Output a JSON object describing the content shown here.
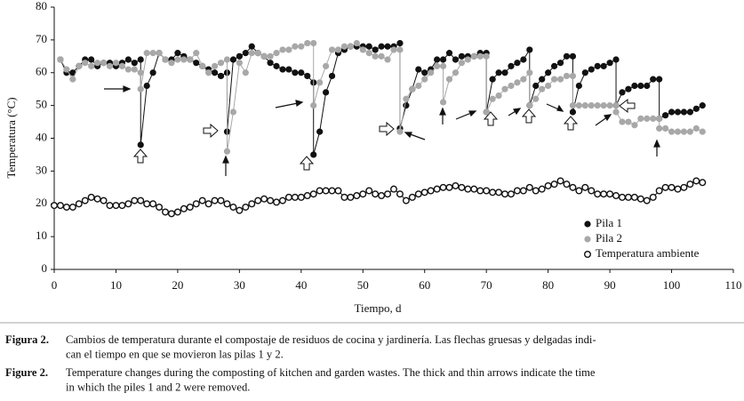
{
  "chart_data": {
    "type": "line",
    "xlabel": "Tiempo, d",
    "ylabel": "Temperatura (°C)",
    "xlim": [
      0,
      110
    ],
    "xticks": [
      0,
      10,
      20,
      30,
      40,
      50,
      60,
      70,
      80,
      90,
      100,
      110
    ],
    "ylim": [
      0,
      80
    ],
    "yticks": [
      0,
      10,
      20,
      30,
      40,
      50,
      60,
      70,
      80
    ],
    "legend": "lower right",
    "series": [
      {
        "name": "Pila 1",
        "color": "#111111",
        "marker": "filled",
        "x": [
          1,
          2,
          3,
          4,
          5,
          6,
          7,
          8,
          9,
          10,
          11,
          12,
          13,
          14,
          14,
          15,
          16,
          17,
          18,
          19,
          20,
          21,
          22,
          23,
          24,
          25,
          26,
          27,
          28,
          28,
          29,
          30,
          31,
          32,
          33,
          34,
          35,
          36,
          37,
          38,
          39,
          40,
          41,
          42,
          42,
          43,
          44,
          45,
          46,
          47,
          48,
          49,
          50,
          51,
          52,
          53,
          54,
          55,
          56,
          56,
          57,
          58,
          59,
          60,
          61,
          62,
          63,
          64,
          65,
          66,
          67,
          68,
          69,
          70,
          70,
          71,
          72,
          73,
          74,
          75,
          76,
          77,
          77,
          78,
          79,
          80,
          81,
          82,
          83,
          84,
          84,
          85,
          86,
          87,
          88,
          89,
          90,
          91,
          91,
          92,
          93,
          94,
          95,
          96,
          97,
          98,
          98,
          99,
          100,
          101,
          102,
          103,
          104,
          105
        ],
        "values": [
          64,
          60,
          60,
          62,
          64,
          64,
          62,
          63,
          63,
          62,
          63,
          64,
          63,
          64,
          38,
          56,
          60,
          66,
          64,
          64,
          66,
          65,
          64,
          63,
          62,
          61,
          60,
          59,
          60,
          42,
          64,
          65,
          66,
          68,
          66,
          65,
          63,
          62,
          61,
          61,
          60,
          60,
          59,
          57,
          35,
          42,
          54,
          59,
          66,
          67,
          68,
          68,
          68,
          68,
          67,
          68,
          68,
          68,
          69,
          43,
          50,
          55,
          61,
          60,
          61,
          64,
          64,
          66,
          64,
          65,
          65,
          65,
          66,
          66,
          48,
          58,
          60,
          60,
          62,
          63,
          64,
          67,
          50,
          56,
          58,
          60,
          62,
          63,
          65,
          65,
          48,
          56,
          60,
          61,
          62,
          62,
          63,
          64,
          50,
          54,
          55,
          56,
          56,
          56,
          58,
          58,
          46,
          47,
          48,
          48,
          48,
          48,
          49,
          50
        ]
      },
      {
        "name": "Pila 2",
        "color": "#a8a8a8",
        "marker": "filled",
        "x": [
          1,
          2,
          3,
          4,
          5,
          6,
          7,
          8,
          9,
          10,
          11,
          12,
          13,
          14,
          14,
          15,
          16,
          17,
          18,
          19,
          20,
          21,
          22,
          23,
          24,
          25,
          26,
          27,
          28,
          28,
          29,
          30,
          31,
          32,
          33,
          34,
          35,
          36,
          37,
          38,
          39,
          40,
          41,
          42,
          42,
          43,
          44,
          45,
          46,
          47,
          48,
          49,
          50,
          51,
          52,
          53,
          54,
          55,
          56,
          56,
          57,
          58,
          59,
          60,
          61,
          62,
          63,
          63,
          64,
          65,
          66,
          67,
          68,
          69,
          70,
          70,
          71,
          72,
          73,
          74,
          75,
          76,
          77,
          77,
          78,
          79,
          80,
          81,
          82,
          83,
          84,
          84,
          85,
          86,
          87,
          88,
          89,
          90,
          91,
          91,
          92,
          93,
          94,
          95,
          96,
          97,
          98,
          98,
          99,
          100,
          101,
          102,
          103,
          104,
          105
        ],
        "values": [
          64,
          61,
          58,
          62,
          63,
          62,
          63,
          63,
          62,
          63,
          62,
          61,
          61,
          60,
          55,
          66,
          66,
          66,
          64,
          63,
          64,
          64,
          64,
          66,
          62,
          60,
          62,
          63,
          64,
          36,
          48,
          63,
          60,
          66,
          66,
          65,
          65,
          66,
          67,
          67,
          68,
          68,
          69,
          69,
          50,
          57,
          62,
          67,
          67,
          68,
          68,
          69,
          67,
          66,
          65,
          65,
          64,
          67,
          67,
          42,
          52,
          55,
          56,
          58,
          60,
          62,
          62,
          51,
          58,
          60,
          63,
          64,
          65,
          65,
          65,
          48,
          52,
          53,
          55,
          56,
          57,
          58,
          60,
          50,
          52,
          55,
          56,
          58,
          58,
          59,
          59,
          50,
          50,
          50,
          50,
          50,
          50,
          50,
          50,
          48,
          45,
          45,
          44,
          46,
          46,
          46,
          46,
          43,
          43,
          42,
          42,
          42,
          42,
          43,
          42
        ]
      },
      {
        "name": "Temperatura ambiente",
        "color": "#111111",
        "marker": "hollow",
        "x": [
          0,
          1,
          2,
          3,
          4,
          5,
          6,
          7,
          8,
          9,
          10,
          11,
          12,
          13,
          14,
          15,
          16,
          17,
          18,
          19,
          20,
          21,
          22,
          23,
          24,
          25,
          26,
          27,
          28,
          29,
          30,
          31,
          32,
          33,
          34,
          35,
          36,
          37,
          38,
          39,
          40,
          41,
          42,
          43,
          44,
          45,
          46,
          47,
          48,
          49,
          50,
          51,
          52,
          53,
          54,
          55,
          56,
          57,
          58,
          59,
          60,
          61,
          62,
          63,
          64,
          65,
          66,
          67,
          68,
          69,
          70,
          71,
          72,
          73,
          74,
          75,
          76,
          77,
          78,
          79,
          80,
          81,
          82,
          83,
          84,
          85,
          86,
          87,
          88,
          89,
          90,
          91,
          92,
          93,
          94,
          95,
          96,
          97,
          98,
          99,
          100,
          101,
          102,
          103,
          104,
          105
        ],
        "values": [
          19.5,
          19.5,
          19,
          19,
          20,
          21,
          22,
          21.5,
          21,
          19.5,
          19.5,
          19.5,
          20,
          21,
          21,
          20,
          20,
          19,
          17.5,
          17,
          17.5,
          18.5,
          19,
          20,
          21,
          20,
          21,
          21,
          20,
          19,
          18,
          19,
          20,
          21,
          21.5,
          21,
          20.5,
          21,
          22,
          22,
          22,
          22.5,
          23,
          24,
          24,
          24,
          24,
          22,
          22,
          22.5,
          23,
          24,
          23,
          22.5,
          23,
          24.5,
          23,
          21,
          22,
          23,
          23.5,
          24,
          24.5,
          25,
          25,
          25.5,
          25,
          24.5,
          24.5,
          24,
          24,
          23.5,
          23.5,
          23,
          23,
          24,
          24,
          25,
          24,
          24.5,
          25.5,
          26,
          27,
          26,
          25,
          24,
          25,
          24,
          23,
          23,
          23,
          22.5,
          22,
          22,
          22,
          21.5,
          21,
          22,
          24,
          25,
          25,
          24.5,
          25,
          26,
          27,
          26.5
        ]
      }
    ]
  },
  "captions": [
    {
      "label": "Figura 2.",
      "lines": [
        "Cambios de temperatura durante el compostaje de residuos de cocina y jardinería. Las flechas gruesas y delgadas indi-",
        "can el tiempo en que se movieron las pilas 1 y 2."
      ]
    },
    {
      "label": "Figure 2.",
      "lines": [
        "Temperature changes during the composting of kitchen and garden wastes. The thick and thin arrows indicate the time",
        "in which the piles 1 and 2 were removed."
      ]
    }
  ]
}
